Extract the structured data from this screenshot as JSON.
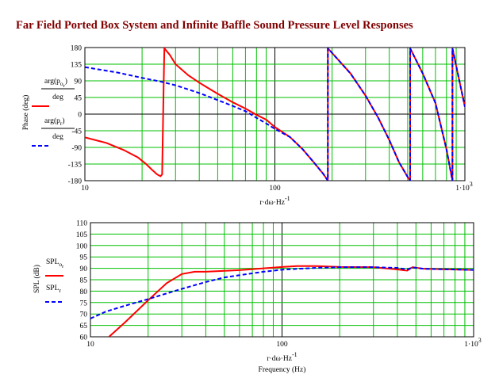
{
  "title": "Far Field Ported Box System and Infinite Baffle Sound Pressure Level Responses",
  "chart_data": [
    {
      "type": "line",
      "x_scale": "log",
      "xlim": [
        10,
        1000
      ],
      "ylim": [
        -180,
        180
      ],
      "x_tick_labels": [
        "10",
        "100"
      ],
      "x_end_label": {
        "mantissa": "1·10",
        "exponent": "3"
      },
      "y_ticks": [
        -180,
        -135,
        -90,
        -45,
        0,
        45,
        90,
        135,
        180
      ],
      "x_label": {
        "main": "r·dω·Hz",
        "exponent": "-1"
      },
      "y_label": "Phase (deg)",
      "grid": true,
      "legend_position": "left",
      "legend": [
        {
          "numer": "arg(p",
          "sub": "o",
          "subsub": "r",
          "close": ")",
          "denom": "deg",
          "style": "solid"
        },
        {
          "numer": "arg(p",
          "sub": "r",
          "subsub": "",
          "close": ")",
          "denom": "deg",
          "style": "dashed"
        }
      ],
      "series": [
        {
          "color": "#ff0000",
          "style": "solid",
          "points": [
            [
              10,
              -63
            ],
            [
              13,
              -78
            ],
            [
              16,
              -97
            ],
            [
              19,
              -117
            ],
            [
              21,
              -135
            ],
            [
              22.5,
              -150
            ],
            [
              24,
              -163
            ],
            [
              25,
              -168
            ],
            [
              25.5,
              -163
            ],
            [
              25.7,
              -60
            ],
            [
              26,
              90
            ],
            [
              26.2,
              178
            ],
            [
              28,
              160
            ],
            [
              30,
              135
            ],
            [
              35,
              105
            ],
            [
              40,
              85
            ],
            [
              50,
              55
            ],
            [
              60,
              32
            ],
            [
              70,
              15
            ],
            [
              80,
              -2
            ],
            [
              90,
              -15
            ],
            [
              100,
              -35
            ],
            [
              120,
              -62
            ],
            [
              140,
              -95
            ],
            [
              160,
              -130
            ],
            [
              180,
              -162
            ],
            [
              190,
              -180
            ],
            [
              190.01,
              178
            ],
            [
              250,
              110
            ],
            [
              300,
              50
            ],
            [
              350,
              -10
            ],
            [
              400,
              -70
            ],
            [
              450,
              -130
            ],
            [
              500,
              -170
            ],
            [
              515,
              -180
            ],
            [
              515.01,
              178
            ],
            [
              600,
              110
            ],
            [
              700,
              30
            ],
            [
              800,
              -95
            ],
            [
              860,
              -180
            ],
            [
              860.01,
              178
            ],
            [
              1000,
              20
            ]
          ]
        },
        {
          "color": "#0000ff",
          "style": "dashed",
          "points": [
            [
              10,
              127
            ],
            [
              15,
              112
            ],
            [
              20,
              98
            ],
            [
              25,
              88
            ],
            [
              30,
              78
            ],
            [
              40,
              57
            ],
            [
              50,
              38
            ],
            [
              60,
              22
            ],
            [
              70,
              8
            ],
            [
              80,
              -10
            ],
            [
              90,
              -25
            ],
            [
              100,
              -40
            ],
            [
              120,
              -62
            ],
            [
              140,
              -95
            ],
            [
              160,
              -130
            ],
            [
              180,
              -162
            ],
            [
              190,
              -180
            ],
            [
              190.01,
              178
            ],
            [
              250,
              110
            ],
            [
              300,
              50
            ],
            [
              350,
              -10
            ],
            [
              400,
              -70
            ],
            [
              450,
              -130
            ],
            [
              500,
              -170
            ],
            [
              515,
              -180
            ],
            [
              515.01,
              178
            ],
            [
              600,
              110
            ],
            [
              700,
              30
            ],
            [
              800,
              -95
            ],
            [
              860,
              -180
            ],
            [
              860.01,
              178
            ],
            [
              1000,
              20
            ]
          ]
        }
      ]
    },
    {
      "type": "line",
      "x_scale": "log",
      "xlim": [
        10,
        1000
      ],
      "ylim": [
        60,
        110
      ],
      "x_tick_labels": [
        "10",
        "100"
      ],
      "x_end_label": {
        "mantissa": "1·10",
        "exponent": "3"
      },
      "y_ticks": [
        60,
        65,
        70,
        75,
        80,
        85,
        90,
        95,
        100,
        105,
        110
      ],
      "x_label": {
        "main": "r·dω·Hz",
        "exponent": "-1"
      },
      "x_label2": "Frequency (Hz)",
      "y_label": "SPL (dB)",
      "grid": true,
      "legend_position": "left",
      "legend": [
        {
          "main": "SPL",
          "sub": "o",
          "subsub": "r",
          "style": "solid"
        },
        {
          "main": "SPL",
          "sub": "r",
          "subsub": "",
          "style": "dashed"
        }
      ],
      "series": [
        {
          "color": "#ff0000",
          "style": "solid",
          "points": [
            [
              12.5,
              60
            ],
            [
              15,
              66
            ],
            [
              20,
              76
            ],
            [
              25,
              83.5
            ],
            [
              30,
              87.5
            ],
            [
              35,
              88.5
            ],
            [
              40,
              88.5
            ],
            [
              60,
              89.2
            ],
            [
              80,
              90
            ],
            [
              100,
              90.6
            ],
            [
              120,
              91
            ],
            [
              150,
              91
            ],
            [
              200,
              90.6
            ],
            [
              300,
              90.5
            ],
            [
              400,
              89.5
            ],
            [
              450,
              89
            ],
            [
              480,
              90.5
            ],
            [
              550,
              89.8
            ],
            [
              700,
              89.6
            ],
            [
              1000,
              89.3
            ]
          ]
        },
        {
          "color": "#0000ff",
          "style": "dashed",
          "points": [
            [
              10,
              68
            ],
            [
              12,
              71
            ],
            [
              15,
              73.5
            ],
            [
              20,
              76.5
            ],
            [
              25,
              79
            ],
            [
              30,
              81
            ],
            [
              40,
              84
            ],
            [
              50,
              86
            ],
            [
              60,
              87
            ],
            [
              80,
              88.5
            ],
            [
              100,
              89.4
            ],
            [
              150,
              90.2
            ],
            [
              200,
              90.5
            ],
            [
              300,
              90.5
            ],
            [
              400,
              90.2
            ],
            [
              450,
              89.5
            ],
            [
              480,
              90.4
            ],
            [
              550,
              89.8
            ],
            [
              700,
              89.6
            ],
            [
              1000,
              89.3
            ]
          ]
        }
      ]
    }
  ]
}
